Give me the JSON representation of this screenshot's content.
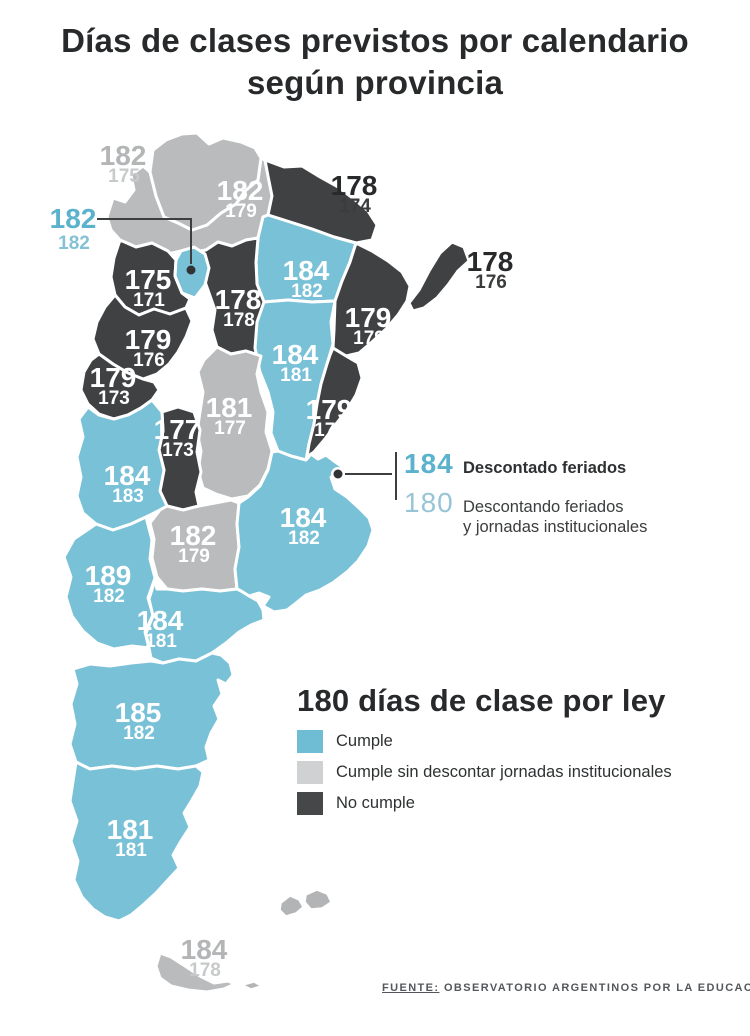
{
  "colors": {
    "cumple": "#79c1d7",
    "cumple_sin": "#b9bbbd",
    "no_cumple": "#3f4143",
    "ink": "#27292b",
    "accent_teal": "#5bb2cd",
    "accent_teal_light": "#97c5d5",
    "label_gray": "#b3b5b6",
    "label_gray_light": "#c7c9ca",
    "label_dark": "#27292b",
    "label_dark_light": "#3a3c3d",
    "deco_gray": "#b2b4b5"
  },
  "chart_data": {
    "type": "heatmap",
    "map": "argentina-provinces-choropleth",
    "title_line1": "Días de clases previstos por calendario",
    "title_line2": "según provincia",
    "annotation": {
      "value_main": "184",
      "label_main": "Descontado feriados",
      "value_secondary": "180",
      "label_secondary_line1": "Descontando feriados",
      "label_secondary_line2": "y jornadas institucionales"
    },
    "legend": {
      "title": "180 días de clase por ley",
      "items": [
        {
          "key": "cumple",
          "label": "Cumple",
          "color": "#6fbdd4"
        },
        {
          "key": "cumple_sin",
          "label": "Cumple sin descontar jornadas institucionales",
          "color": "#cfd1d2"
        },
        {
          "key": "no_cumple",
          "label": "No cumple",
          "color": "#454749"
        }
      ]
    },
    "source": {
      "prefix": "FUENTE:",
      "text": "OBSERVATORIO ARGENTINOS POR LA EDUCACIÓN"
    },
    "provinces": [
      {
        "id": "salta",
        "status": "cumple_sin",
        "main": "182",
        "secondary": "179"
      },
      {
        "id": "jujuy",
        "status": "cumple_sin",
        "main": "182",
        "secondary": "175"
      },
      {
        "id": "formosa",
        "status": "no_cumple",
        "main": "178",
        "secondary": "174"
      },
      {
        "id": "chaco",
        "status": "cumple",
        "main": "184",
        "secondary": "182"
      },
      {
        "id": "misiones",
        "status": "no_cumple",
        "main": "178",
        "secondary": "176"
      },
      {
        "id": "corrientes",
        "status": "no_cumple",
        "main": "179",
        "secondary": "179"
      },
      {
        "id": "santiago-del-estero",
        "status": "no_cumple",
        "main": "178",
        "secondary": "178"
      },
      {
        "id": "catamarca",
        "status": "no_cumple",
        "main": "175",
        "secondary": "171"
      },
      {
        "id": "tucuman",
        "status": "cumple",
        "main": "182",
        "secondary": "182"
      },
      {
        "id": "la-rioja",
        "status": "no_cumple",
        "main": "179",
        "secondary": "176"
      },
      {
        "id": "san-juan",
        "status": "no_cumple",
        "main": "179",
        "secondary": "173"
      },
      {
        "id": "santa-fe",
        "status": "cumple",
        "main": "184",
        "secondary": "181"
      },
      {
        "id": "cordoba",
        "status": "cumple_sin",
        "main": "181",
        "secondary": "177"
      },
      {
        "id": "entre-rios",
        "status": "no_cumple",
        "main": "179",
        "secondary": "176"
      },
      {
        "id": "san-luis",
        "status": "no_cumple",
        "main": "177",
        "secondary": "173"
      },
      {
        "id": "mendoza",
        "status": "cumple",
        "main": "184",
        "secondary": "183"
      },
      {
        "id": "la-pampa",
        "status": "cumple_sin",
        "main": "182",
        "secondary": "179"
      },
      {
        "id": "buenos-aires",
        "status": "cumple",
        "main": "184",
        "secondary": "182"
      },
      {
        "id": "neuquen",
        "status": "cumple",
        "main": "189",
        "secondary": "182"
      },
      {
        "id": "rio-negro",
        "status": "cumple",
        "main": "184",
        "secondary": "181"
      },
      {
        "id": "chubut",
        "status": "cumple",
        "main": "185",
        "secondary": "182"
      },
      {
        "id": "santa-cruz",
        "status": "cumple",
        "main": "181",
        "secondary": "181"
      },
      {
        "id": "tierra-del-fuego",
        "status": "cumple_sin",
        "main": "184",
        "secondary": "178"
      }
    ]
  }
}
